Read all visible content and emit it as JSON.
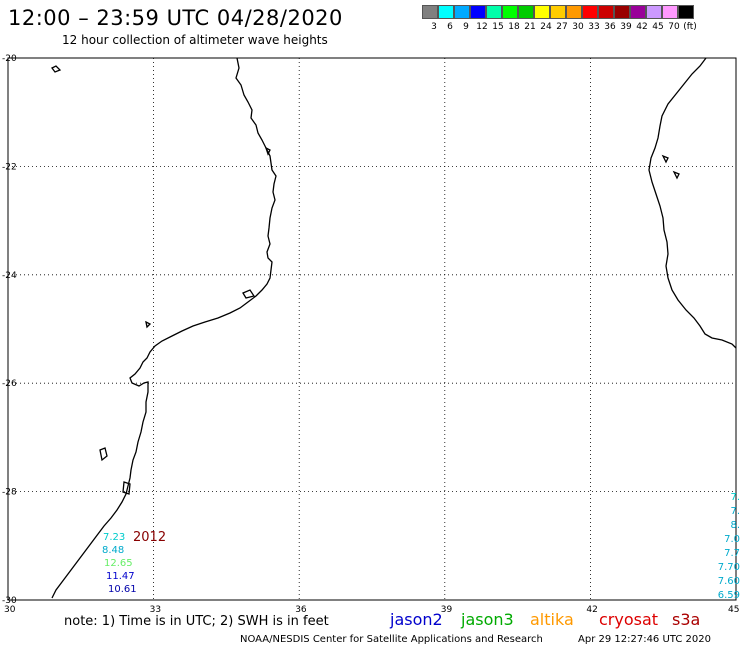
{
  "header": {
    "title": "12:00 – 23:59 UTC 04/28/2020",
    "subtitle": "12 hour collection of altimeter wave heights"
  },
  "legend": {
    "colors": [
      "#808080",
      "#00ffff",
      "#00aaff",
      "#0000ff",
      "#00ffaa",
      "#00ff00",
      "#00cc00",
      "#ffff00",
      "#ffcc00",
      "#ff9900",
      "#ff0000",
      "#cc0000",
      "#990000",
      "#990099",
      "#cc99ff",
      "#ff99ff",
      "#000000"
    ],
    "labels": [
      "3",
      "6",
      "9",
      "12",
      "15",
      "18",
      "21",
      "24",
      "27",
      "30",
      "33",
      "36",
      "39",
      "42",
      "45",
      "70",
      "(ft)"
    ]
  },
  "axes": {
    "lat_labels": [
      "-20",
      "-22",
      "-24",
      "-26",
      "-28",
      "-30"
    ],
    "lon_labels": [
      "30",
      "33",
      "36",
      "39",
      "42",
      "45"
    ]
  },
  "map": {
    "year_label": "2012",
    "year_label_color": "#880000",
    "wave_values_left": [
      {
        "text": "7.23",
        "color": "#00cccc"
      },
      {
        "text": "8.48",
        "color": "#00aacc"
      },
      {
        "text": "12.65",
        "color": "#66ee66"
      },
      {
        "text": "11.47",
        "color": "#0000cc"
      },
      {
        "text": "10.61",
        "color": "#0000aa"
      }
    ],
    "wave_values_right": [
      {
        "text": "7.",
        "color": "#00cccc"
      },
      {
        "text": "7.",
        "color": "#00aacc"
      },
      {
        "text": "8.",
        "color": "#00aacc"
      },
      {
        "text": "7.0",
        "color": "#00aacc"
      },
      {
        "text": "7.7",
        "color": "#00aacc"
      },
      {
        "text": "7.70",
        "color": "#00aacc"
      },
      {
        "text": "7.60",
        "color": "#00aacc"
      },
      {
        "text": "6.59",
        "color": "#00aacc"
      }
    ]
  },
  "footer": {
    "note": "note: 1) Time is in UTC; 2) SWH is in feet",
    "satellites": [
      {
        "name": "jason2",
        "color": "#0000cc"
      },
      {
        "name": "jason3",
        "color": "#00aa00"
      },
      {
        "name": "altika",
        "color": "#ff9900"
      },
      {
        "name": "cryosat",
        "color": "#dd0000"
      },
      {
        "name": "s3a",
        "color": "#aa0000"
      }
    ],
    "credit": "NOAA/NESDIS Center for Satellite Applications and Research",
    "timestamp": "Apr 29 12:27:46 UTC 2020"
  }
}
